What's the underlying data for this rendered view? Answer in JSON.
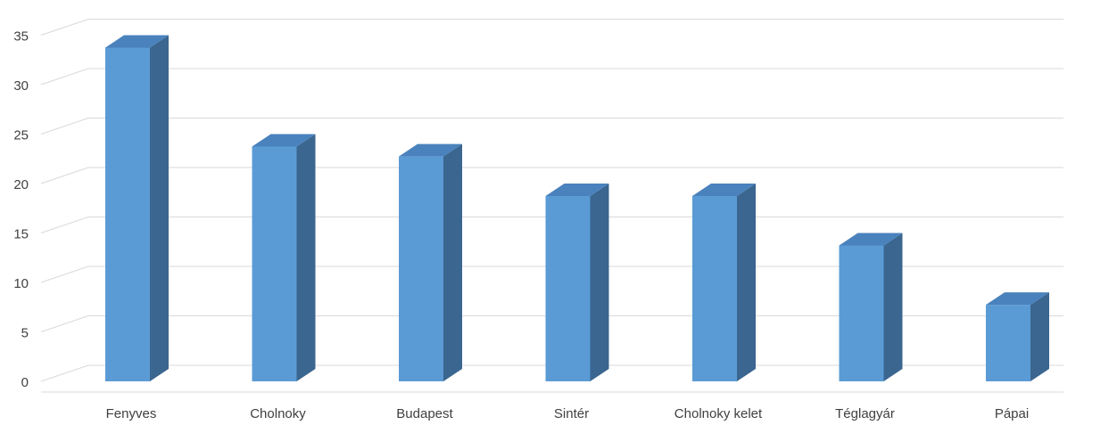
{
  "chart_data": {
    "type": "bar",
    "style": "3d-column",
    "categories": [
      "Fenyves",
      "Cholnoky",
      "Budapest",
      "Sintér",
      "Cholnoky kelet",
      "Téglagyár",
      "Pápai"
    ],
    "values": [
      35,
      25,
      24,
      20,
      20,
      15,
      9
    ],
    "ylim": [
      0,
      35
    ],
    "yticks": [
      "0",
      "5",
      "10",
      "15",
      "20",
      "25",
      "30",
      "35"
    ],
    "grid": true,
    "legend": "none",
    "title": "",
    "xlabel": "",
    "ylabel": "",
    "colors": {
      "front": "#5b9bd5",
      "side": "#3a6690",
      "top": "#4a82bd",
      "grid": "#d9d9d9",
      "text": "#404040"
    }
  }
}
